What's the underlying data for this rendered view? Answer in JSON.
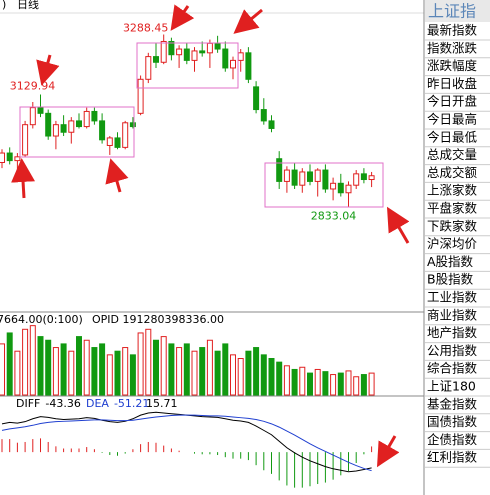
{
  "top_bar": {
    "period": "日线"
  },
  "side_panel": {
    "title": "上证指",
    "items": [
      "最新指数",
      "指数涨跌",
      "涨跌幅度",
      "昨日收盘",
      "今日开盘",
      "今日最高",
      "今日最低",
      "总成交量",
      "总成交额",
      "上涨家数",
      "平盘家数",
      "下跌家数",
      "沪深均价",
      "A股指数",
      "B股指数",
      "工业指数",
      "商业指数",
      "地产指数",
      "公用指数",
      "综合指数",
      "上证180",
      "基金指数",
      "国债指数",
      "企债指数",
      "红利指数"
    ]
  },
  "chart_data": [
    {
      "type": "candlestick",
      "categories": [
        null,
        null,
        null,
        null,
        null,
        null,
        null,
        null,
        null,
        null,
        null,
        null,
        null,
        null,
        null,
        null,
        null,
        null,
        null,
        null,
        null,
        null,
        null,
        null,
        null,
        null,
        null,
        null,
        null,
        null,
        null,
        null,
        null,
        null,
        null,
        null,
        null,
        null,
        null,
        null,
        null,
        null,
        null,
        null,
        null,
        null,
        null,
        null,
        null
      ],
      "open": [
        2950,
        2975,
        2955,
        2970,
        3050,
        3095,
        3080,
        3020,
        3050,
        3030,
        3060,
        3045,
        3085,
        3060,
        2995,
        3015,
        2990,
        3055,
        3080,
        3170,
        3230,
        3215,
        3270,
        3235,
        3250,
        3220,
        3245,
        3240,
        3265,
        3250,
        3200,
        3220,
        3240,
        3150,
        3090,
        3060,
        2960,
        2900,
        2930,
        2890,
        2925,
        2900,
        2930,
        2880,
        2895,
        2870,
        2890,
        2920,
        2905
      ],
      "high": [
        2985,
        2990,
        2975,
        3060,
        3110,
        3129.94,
        3090,
        3060,
        3075,
        3070,
        3080,
        3095,
        3095,
        3080,
        3020,
        3030,
        3060,
        3070,
        3180,
        3240,
        3265,
        3288.45,
        3280,
        3260,
        3265,
        3255,
        3270,
        3275,
        3285,
        3270,
        3230,
        3250,
        3255,
        3165,
        3120,
        3075,
        2980,
        2940,
        2950,
        2935,
        2945,
        2935,
        2945,
        2910,
        2920,
        2900,
        2930,
        2935,
        2925
      ],
      "low": [
        2935,
        2945,
        2925,
        2965,
        3040,
        3070,
        3010,
        2985,
        3020,
        3000,
        3040,
        3040,
        3050,
        3000,
        2970,
        2985,
        2985,
        3040,
        3075,
        3160,
        3200,
        3210,
        3220,
        3200,
        3210,
        3190,
        3230,
        3200,
        3240,
        3190,
        3170,
        3190,
        3160,
        3080,
        3050,
        3030,
        2880,
        2870,
        2880,
        2870,
        2890,
        2860,
        2870,
        2850,
        2860,
        2833.04,
        2880,
        2895,
        2885
      ],
      "close": [
        2975,
        2955,
        2965,
        3050,
        3095,
        3080,
        3020,
        3050,
        3030,
        3060,
        3045,
        3085,
        3060,
        3010,
        3015,
        2990,
        3055,
        3045,
        3170,
        3230,
        3215,
        3270,
        3235,
        3250,
        3220,
        3245,
        3240,
        3265,
        3250,
        3200,
        3220,
        3240,
        3170,
        3090,
        3060,
        3040,
        2900,
        2930,
        2890,
        2925,
        2900,
        2930,
        2880,
        2895,
        2870,
        2890,
        2920,
        2905,
        2915
      ],
      "ylim": [
        2560,
        3340
      ]
    },
    {
      "type": "volume",
      "header": "7664.00(0:100)",
      "subheader": "OPID 191280398336.00",
      "values": [
        70,
        85,
        60,
        90,
        95,
        80,
        75,
        65,
        70,
        60,
        80,
        75,
        65,
        70,
        55,
        60,
        65,
        55,
        85,
        90,
        75,
        80,
        70,
        65,
        70,
        60,
        65,
        75,
        60,
        70,
        55,
        50,
        60,
        65,
        55,
        50,
        45,
        40,
        35,
        38,
        30,
        35,
        32,
        28,
        30,
        33,
        25,
        28,
        30
      ],
      "ylim": [
        0,
        100
      ]
    },
    {
      "type": "macd",
      "series": [
        {
          "name": "DIFF",
          "color": "#000000",
          "values": [
            78,
            82,
            80,
            84,
            92,
            98,
            96,
            92,
            90,
            91,
            92,
            95,
            93,
            88,
            84,
            82,
            85,
            92,
            102,
            108,
            110,
            108,
            106,
            104,
            102,
            100,
            98,
            97,
            96,
            92,
            88,
            86,
            82,
            72,
            60,
            48,
            30,
            12,
            -2,
            -14,
            -24,
            -32,
            -40,
            -46,
            -50,
            -54,
            -52,
            -48,
            -43.36
          ]
        },
        {
          "name": "DEA",
          "color": "#1f3fd0",
          "values": [
            60,
            64,
            67,
            70,
            74,
            79,
            82,
            84,
            85,
            86,
            87,
            88,
            89,
            89,
            88,
            87,
            87,
            88,
            91,
            94,
            97,
            99,
            101,
            102,
            102,
            102,
            101,
            100,
            100,
            99,
            97,
            95,
            93,
            90,
            85,
            78,
            69,
            58,
            47,
            35,
            23,
            12,
            2,
            -8,
            -18,
            -28,
            -37,
            -45,
            -51.21
          ]
        }
      ],
      "histogram": [
        36,
        36,
        26,
        28,
        36,
        38,
        28,
        16,
        10,
        10,
        10,
        14,
        8,
        -2,
        -8,
        -10,
        -4,
        8,
        22,
        28,
        26,
        18,
        10,
        4,
        0,
        -4,
        -6,
        -6,
        -8,
        -14,
        -18,
        -18,
        -22,
        -36,
        -50,
        -60,
        -78,
        -92,
        -98,
        -98,
        -94,
        -88,
        -84,
        -76,
        -64,
        -52,
        -30,
        -6,
        15.71
      ],
      "ylim": [
        -110,
        130
      ]
    }
  ]
}
